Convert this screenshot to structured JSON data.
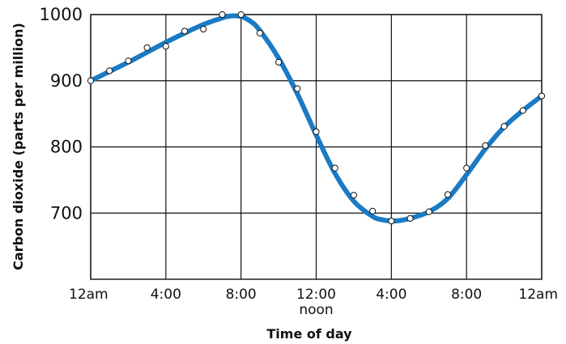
{
  "chart_data": {
    "type": "line",
    "xlabel": "Time of day",
    "ylabel": "Carbon dioxide (parts per million)",
    "x_ticks": [
      {
        "hour": 0,
        "label": "12am",
        "sub": ""
      },
      {
        "hour": 4,
        "label": "4:00",
        "sub": ""
      },
      {
        "hour": 8,
        "label": "8:00",
        "sub": ""
      },
      {
        "hour": 12,
        "label": "12:00",
        "sub": "noon"
      },
      {
        "hour": 16,
        "label": "4:00",
        "sub": ""
      },
      {
        "hour": 20,
        "label": "8:00",
        "sub": ""
      },
      {
        "hour": 24,
        "label": "12am",
        "sub": ""
      }
    ],
    "xlim": [
      0,
      24
    ],
    "y_ticks": [
      700,
      800,
      900,
      1000
    ],
    "ylim": [
      600,
      1000
    ],
    "grid": true,
    "series": [
      {
        "kind": "measured",
        "x": [
          0,
          1,
          2,
          3,
          4,
          5,
          6,
          7,
          8,
          9,
          10,
          11,
          12,
          13,
          14,
          15,
          16,
          17,
          18,
          19,
          20,
          21,
          22,
          23,
          24
        ],
        "values": [
          900,
          915,
          930,
          950,
          952,
          975,
          978,
          1000,
          1000,
          972,
          928,
          888,
          823,
          768,
          727,
          703,
          688,
          692,
          702,
          728,
          768,
          802,
          831,
          855,
          877
        ]
      },
      {
        "kind": "fit",
        "x": [
          0,
          1,
          2,
          3,
          4,
          5,
          6,
          7,
          7.5,
          8,
          8.5,
          9,
          10,
          11,
          12,
          13,
          14,
          15,
          15.5,
          16,
          16.5,
          17,
          18,
          19,
          20,
          21,
          22,
          23,
          24
        ],
        "values": [
          900,
          914,
          928,
          943,
          958,
          972,
          985,
          995,
          998,
          997,
          990,
          976,
          934,
          880,
          818,
          760,
          718,
          695,
          690,
          688,
          689,
          692,
          702,
          722,
          758,
          797,
          830,
          855,
          877
        ]
      }
    ],
    "colors": {
      "fit_line": "#1a7bc4",
      "points_fill": "#ffffff",
      "points_stroke": "#111111",
      "grid": "#111111"
    }
  }
}
